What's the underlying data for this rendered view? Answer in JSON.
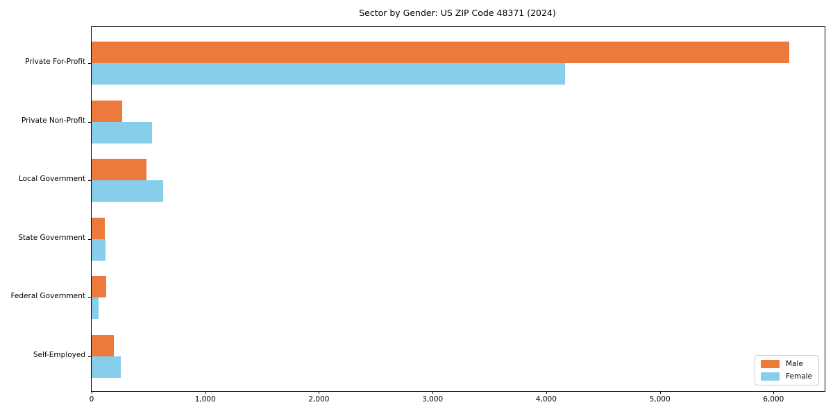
{
  "title": "Sector by Gender: US ZIP Code 48371 (2024)",
  "chart_data": {
    "type": "bar",
    "orientation": "horizontal",
    "title": "Sector by Gender: US ZIP Code 48371 (2024)",
    "xlabel": "",
    "ylabel": "",
    "categories": [
      "Private For-Profit",
      "Private Non-Profit",
      "Local Government",
      "State Government",
      "Federal Government",
      "Self-Employed"
    ],
    "series": [
      {
        "name": "Male",
        "color": "#ec7a3c",
        "values": [
          6140,
          270,
          485,
          115,
          130,
          195
        ]
      },
      {
        "name": "Female",
        "color": "#87ceeb",
        "values": [
          4165,
          530,
          630,
          120,
          60,
          255
        ]
      }
    ],
    "xlim": [
      0,
      6450
    ],
    "xticks": [
      0,
      1000,
      2000,
      3000,
      4000,
      5000,
      6000
    ],
    "xticklabels": [
      "0",
      "1,000",
      "2,000",
      "3,000",
      "4,000",
      "5,000",
      "6,000"
    ],
    "grid": false,
    "legend_position": "lower right"
  }
}
